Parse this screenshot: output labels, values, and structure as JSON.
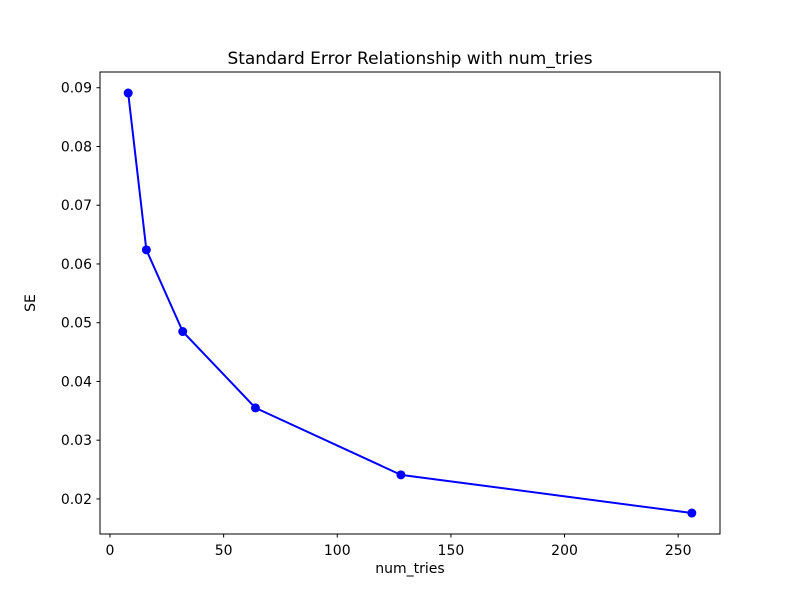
{
  "chart_data": {
    "type": "line",
    "title": "Standard Error Relationship with num_tries",
    "xlabel": "num_tries",
    "ylabel": "SE",
    "series": [
      {
        "name": "SE vs num_tries",
        "x": [
          8,
          16,
          32,
          64,
          128,
          256
        ],
        "y": [
          0.0891,
          0.0624,
          0.0485,
          0.0355,
          0.0241,
          0.0176
        ],
        "color": "#0000ff",
        "marker": "circle",
        "line_width": 2
      }
    ],
    "xlim": [
      -4.4,
      268.4
    ],
    "ylim": [
      0.01403,
      0.09268
    ],
    "x_ticks": [
      0,
      50,
      100,
      150,
      200,
      250
    ],
    "x_tick_labels": [
      "0",
      "50",
      "100",
      "150",
      "200",
      "250"
    ],
    "y_ticks": [
      0.02,
      0.03,
      0.04,
      0.05,
      0.06,
      0.07,
      0.08,
      0.09
    ],
    "y_tick_labels": [
      "0.02",
      "0.03",
      "0.04",
      "0.05",
      "0.06",
      "0.07",
      "0.08",
      "0.09"
    ],
    "grid": false,
    "legend": null,
    "background_color": "#ffffff",
    "spine_color": "#000000"
  }
}
